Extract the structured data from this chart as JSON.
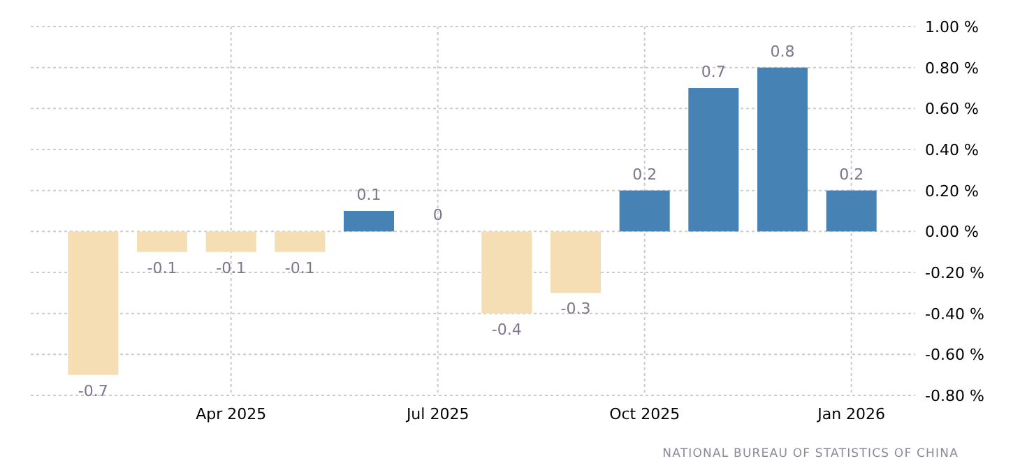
{
  "chart_data": {
    "type": "bar",
    "categories": [
      null,
      null,
      "Apr 2025",
      null,
      null,
      "Jul 2025",
      null,
      null,
      "Oct 2025",
      null,
      null,
      "Jan 2026"
    ],
    "values": [
      -0.7,
      -0.1,
      -0.1,
      -0.1,
      0.1,
      0,
      -0.4,
      -0.3,
      0.2,
      0.7,
      0.8,
      0.2
    ],
    "colors": [
      "#f5deb3",
      "#f5deb3",
      "#f5deb3",
      "#f5deb3",
      "#4682b4",
      "#f5deb3",
      "#f5deb3",
      "#f5deb3",
      "#4682b4",
      "#4682b4",
      "#4682b4",
      "#4682b4"
    ],
    "ylim": [
      -0.8,
      1.0
    ],
    "yticks": [
      {
        "value": -0.8,
        "label": "-0.80 %"
      },
      {
        "value": -0.6,
        "label": "-0.60 %"
      },
      {
        "value": -0.4,
        "label": "-0.40 %"
      },
      {
        "value": -0.2,
        "label": "-0.20 %"
      },
      {
        "value": 0,
        "label": "0.00 %"
      },
      {
        "value": 0.2,
        "label": "0.20 %"
      },
      {
        "value": 0.4,
        "label": "0.40 %"
      },
      {
        "value": 0.6,
        "label": "0.60 %"
      },
      {
        "value": 0.8,
        "label": "0.80 %"
      },
      {
        "value": 1.0,
        "label": "1.00 %"
      }
    ],
    "grid": true,
    "data_labels": true,
    "annotations": [
      "NATIONAL BUREAU OF STATISTICS OF CHINA"
    ]
  }
}
